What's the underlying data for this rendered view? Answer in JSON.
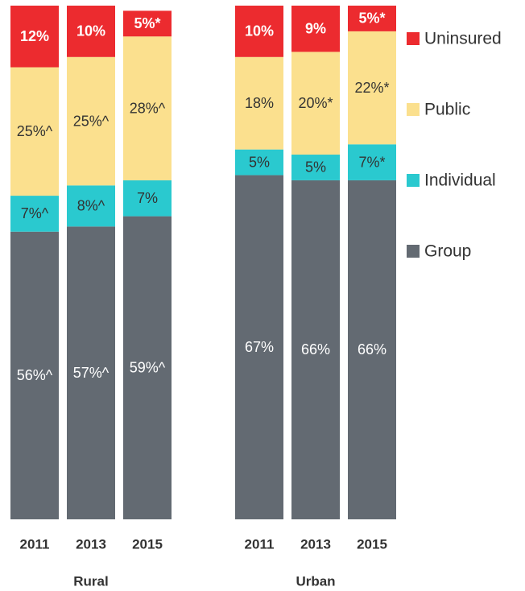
{
  "chart_data": {
    "type": "stacked_bar",
    "categories": [
      "2011",
      "2013",
      "2015",
      "2011",
      "2013",
      "2015"
    ],
    "group_labels": [
      "Rural",
      "Urban"
    ],
    "series": [
      {
        "name": "Group",
        "color": "#636a72",
        "values": [
          56,
          57,
          59,
          67,
          66,
          66
        ],
        "value_labels": [
          "56%^",
          "57%^",
          "59%^",
          "67%",
          "66%",
          "66%"
        ]
      },
      {
        "name": "Individual",
        "color": "#2ac9cf",
        "values": [
          7,
          8,
          7,
          5,
          5,
          7
        ],
        "value_labels": [
          "7%^",
          "8%^",
          "7%",
          "5%",
          "5%",
          "7%*"
        ]
      },
      {
        "name": "Public",
        "color": "#fbe08e",
        "values": [
          25,
          25,
          28,
          18,
          20,
          22
        ],
        "value_labels": [
          "25%^",
          "25%^",
          "28%^",
          "18%",
          "20%*",
          "22%*"
        ]
      },
      {
        "name": "Uninsured",
        "color": "#ec2b2f",
        "values": [
          12,
          10,
          5,
          10,
          9,
          5
        ],
        "value_labels": [
          "12%",
          "10%",
          "5%*",
          "10%",
          "9%",
          "5%*"
        ]
      }
    ],
    "legend": "right"
  }
}
